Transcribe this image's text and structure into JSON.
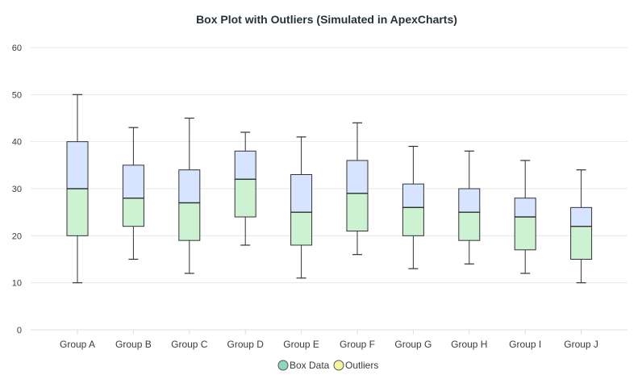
{
  "chart_data": {
    "type": "boxplot",
    "title": "Box Plot with Outliers (Simulated in ApexCharts)",
    "xlabel": "",
    "ylabel": "",
    "ylim": [
      0,
      60
    ],
    "yticks": [
      0,
      10,
      20,
      30,
      40,
      50,
      60
    ],
    "grid": true,
    "legend_position": "bottom-center",
    "legend": [
      {
        "label": "Box Data",
        "color": "#8fd3c1"
      },
      {
        "label": "Outliers",
        "color": "#f6f3a0"
      }
    ],
    "categories": [
      "Group A",
      "Group B",
      "Group C",
      "Group D",
      "Group E",
      "Group F",
      "Group G",
      "Group H",
      "Group I",
      "Group J"
    ],
    "series": [
      {
        "name": "Box Data",
        "values": [
          {
            "min": 10,
            "q1": 20,
            "median": 30,
            "q3": 40,
            "max": 50
          },
          {
            "min": 15,
            "q1": 22,
            "median": 28,
            "q3": 35,
            "max": 43
          },
          {
            "min": 12,
            "q1": 19,
            "median": 27,
            "q3": 34,
            "max": 45
          },
          {
            "min": 18,
            "q1": 24,
            "median": 32,
            "q3": 38,
            "max": 42
          },
          {
            "min": 11,
            "q1": 18,
            "median": 25,
            "q3": 33,
            "max": 41
          },
          {
            "min": 16,
            "q1": 21,
            "median": 29,
            "q3": 36,
            "max": 44
          },
          {
            "min": 13,
            "q1": 20,
            "median": 26,
            "q3": 31,
            "max": 39
          },
          {
            "min": 14,
            "q1": 19,
            "median": 25,
            "q3": 30,
            "max": 38
          },
          {
            "min": 12,
            "q1": 17,
            "median": 24,
            "q3": 28,
            "max": 36
          },
          {
            "min": 10,
            "q1": 15,
            "median": 22,
            "q3": 26,
            "max": 34
          }
        ]
      },
      {
        "name": "Outliers",
        "values": []
      }
    ],
    "colors": {
      "box_upper": "#d6e4ff",
      "box_lower": "#ccf2d2",
      "stroke": "#333333",
      "grid": "#e7e7e7",
      "axis": "#dddddd"
    }
  }
}
